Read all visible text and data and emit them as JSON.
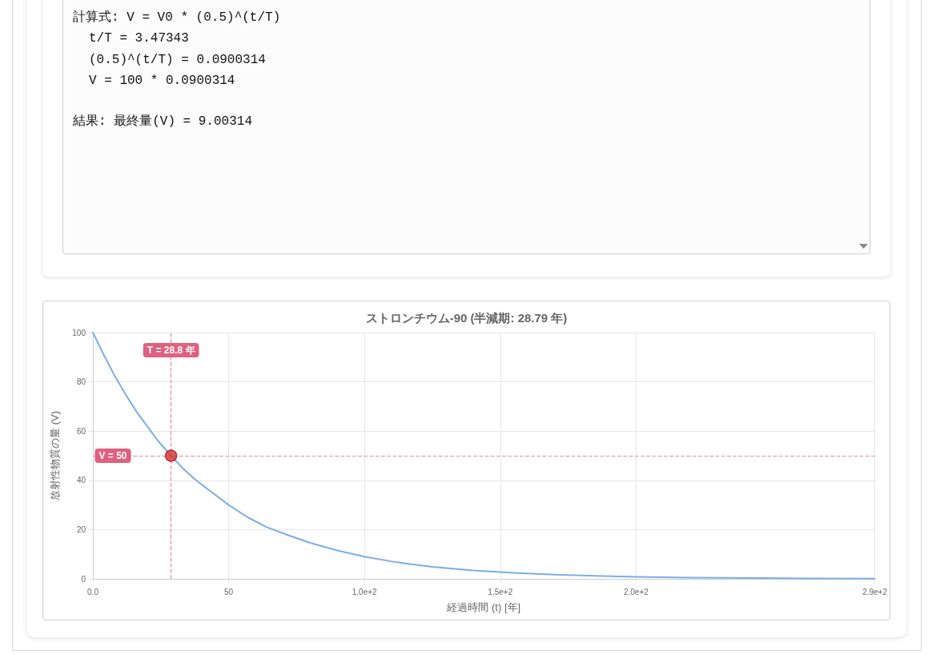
{
  "chart_data": [
    {
      "type": "other",
      "annotations": [
        "計算式: V = V0 * (0.5)^(t/T)",
        "t/T = 3.47343",
        "(0.5)^(t/T) = 0.0900314",
        "V = 100 * 0.0900314",
        "結果: 最終量(V) = 9.00314"
      ]
    },
    {
      "type": "line",
      "title": "ストロンチウム-90 (半減期: 28.79 年)",
      "xlabel": "経過時間 (t) [年]",
      "ylabel": "放射性物質の量 (V)",
      "x": [
        0,
        4,
        8,
        12,
        16,
        20,
        24,
        28.79,
        33,
        38,
        44,
        50,
        57,
        64,
        72,
        80,
        90,
        100,
        112,
        125,
        140,
        155,
        170,
        185,
        200,
        220,
        245,
        265,
        287.9
      ],
      "series": [
        {
          "type": "line",
          "color": "#7aaee8",
          "values": [
            100,
            91,
            82.5,
            75,
            68,
            62,
            56,
            50,
            45,
            40,
            35,
            30,
            25,
            21,
            17.7,
            14.6,
            11.5,
            9,
            6.7,
            4.9,
            3.4,
            2.4,
            1.7,
            1.2,
            0.8,
            0.5,
            0.3,
            0.2,
            0.1
          ]
        },
        {
          "type": "scatter",
          "x": [
            28.79
          ],
          "values": [
            50
          ],
          "color": "#d9302a",
          "marker": "circle"
        }
      ],
      "xlim": [
        0,
        287.9
      ],
      "xticks": [
        {
          "value": 0,
          "label": "0.0"
        },
        50,
        {
          "value": 100,
          "label": "1.0e+2"
        },
        {
          "value": 150,
          "label": "1.5e+2"
        },
        {
          "value": 200,
          "label": "2.0e+2"
        },
        {
          "value": 287.9,
          "label": "2.9e+2"
        }
      ],
      "ylim": [
        0,
        100
      ],
      "yticks": [
        0,
        20,
        40,
        60,
        80,
        100
      ],
      "ref_lines": [
        {
          "axis": "x",
          "value": 28.79,
          "label": "T = 28.8 年",
          "color": "#e0607f",
          "line_style": "dashed"
        },
        {
          "axis": "y",
          "value": 50,
          "label": "V = 50",
          "color": "#e0607f",
          "line_style": "dashed"
        }
      ],
      "grid": true,
      "marker": "none",
      "line_style": "solid"
    }
  ]
}
